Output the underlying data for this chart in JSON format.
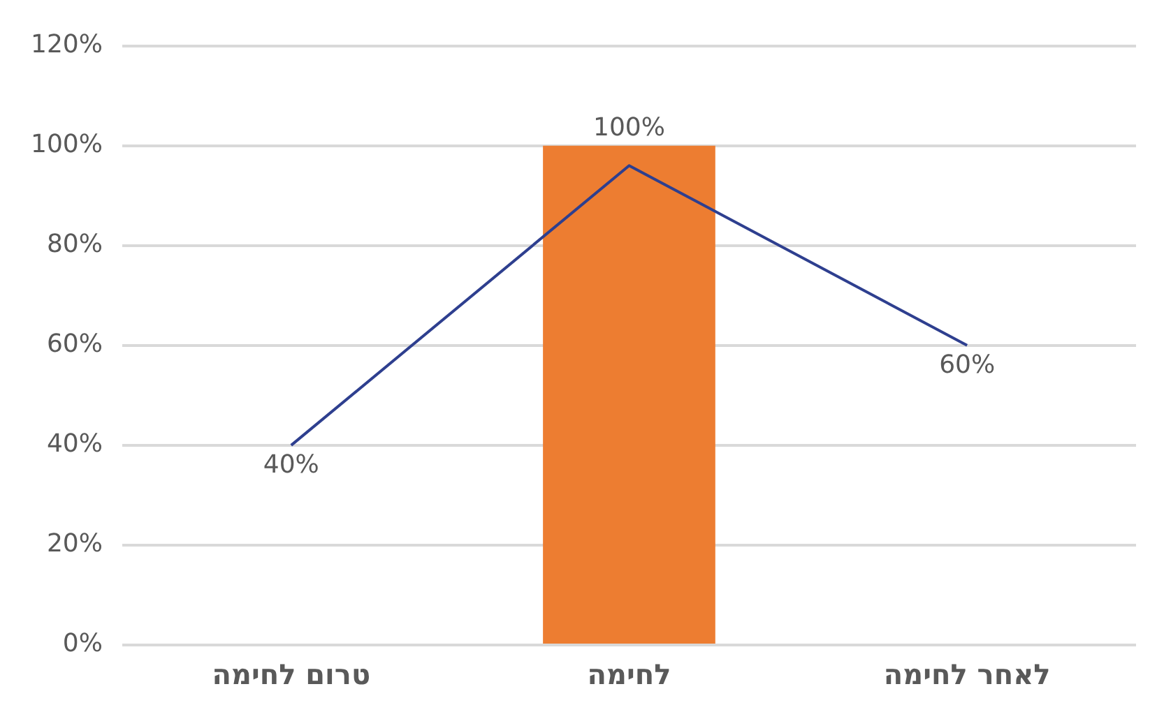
{
  "chart_data": {
    "type": "bar",
    "categories": [
      "טרום לחימה",
      "לחימה",
      "לאחר לחימה"
    ],
    "series": [
      {
        "color": "#ed7d31",
        "values": [
          null,
          100,
          null
        ],
        "value_labels": [
          null,
          "100%",
          null
        ]
      },
      {
        "type": "line",
        "color": "#2e3f8f",
        "values": [
          40,
          96,
          60
        ],
        "value_labels": [
          "40%",
          null,
          "60%"
        ]
      }
    ],
    "ylim": [
      0,
      120
    ],
    "yticks": [
      {
        "value": 0,
        "label": "0%"
      },
      {
        "value": 20,
        "label": "20%"
      },
      {
        "value": 40,
        "label": "40%"
      },
      {
        "value": 60,
        "label": "60%"
      },
      {
        "value": 80,
        "label": "80%"
      },
      {
        "value": 100,
        "label": "100%"
      },
      {
        "value": 120,
        "label": "120%"
      }
    ],
    "grid": "y",
    "marker": "none",
    "line_style": "solid"
  }
}
